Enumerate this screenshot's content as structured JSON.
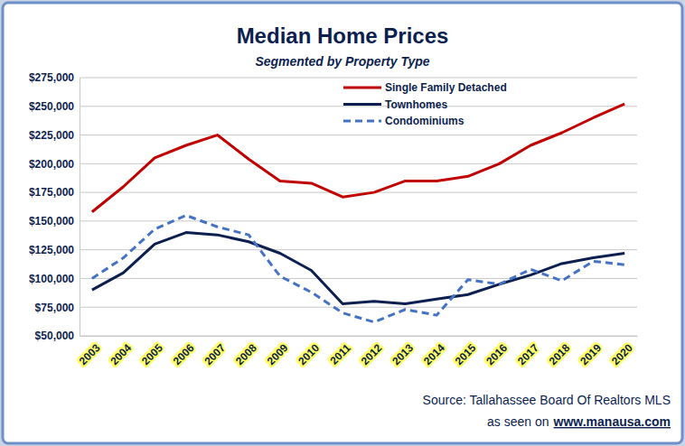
{
  "chart_data": {
    "type": "line",
    "title": "Median Home Prices",
    "subtitle": "Segmented by Property Type",
    "categories": [
      "2003",
      "2004",
      "2005",
      "2006",
      "2007",
      "2008",
      "2009",
      "2010",
      "2011",
      "2012",
      "2013",
      "2014",
      "2015",
      "2016",
      "2017",
      "2018",
      "2019",
      "2020"
    ],
    "series": [
      {
        "name": "Single Family Detached",
        "color": "#c00000",
        "line_style": "solid",
        "values": [
          158000,
          180000,
          205000,
          216000,
          225000,
          204000,
          185000,
          183000,
          171000,
          175000,
          185000,
          185000,
          189000,
          200000,
          216000,
          227000,
          240000,
          252000
        ]
      },
      {
        "name": "Townhomes",
        "color": "#0d1f4f",
        "line_style": "solid",
        "values": [
          90000,
          105000,
          130000,
          140000,
          138000,
          132000,
          122000,
          107000,
          78000,
          80000,
          78000,
          82000,
          86000,
          95000,
          103000,
          113000,
          118000,
          122000
        ]
      },
      {
        "name": "Condominiums",
        "color": "#4472c4",
        "line_style": "dashed",
        "values": [
          100000,
          118000,
          143000,
          155000,
          145000,
          138000,
          102000,
          88000,
          70000,
          62000,
          73000,
          68000,
          99000,
          95000,
          108000,
          98000,
          115000,
          112000
        ]
      }
    ],
    "ylim": [
      50000,
      275000
    ],
    "yticks": [
      {
        "value": 50000,
        "label": "$50,000"
      },
      {
        "value": 75000,
        "label": "$75,000"
      },
      {
        "value": 100000,
        "label": "$100,000"
      },
      {
        "value": 125000,
        "label": "$125,000"
      },
      {
        "value": 150000,
        "label": "$150,000"
      },
      {
        "value": 175000,
        "label": "$175,000"
      },
      {
        "value": 200000,
        "label": "$200,000"
      },
      {
        "value": 225000,
        "label": "$225,000"
      },
      {
        "value": 250000,
        "label": "$250,000"
      },
      {
        "value": 275000,
        "label": "$275,000"
      }
    ],
    "grid": true,
    "legend": "top-right",
    "annotations": [
      "Source: Tallahassee Board Of Realtors MLS",
      "as seen on",
      "www.manausa.com"
    ]
  }
}
